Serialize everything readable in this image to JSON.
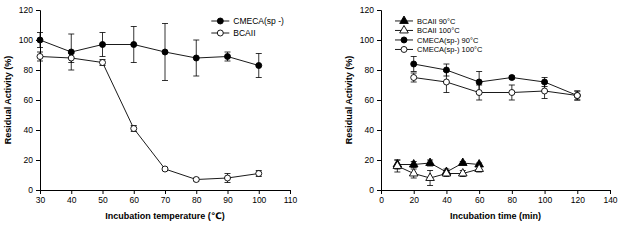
{
  "chart_data": [
    {
      "type": "line",
      "x_label": "Incubation temperature (℃)",
      "y_label": "Residual Activity (%)",
      "xlim": [
        30,
        110
      ],
      "xticks": [
        30,
        40,
        50,
        60,
        70,
        80,
        90,
        100,
        110
      ],
      "ylim": [
        0,
        120
      ],
      "yticks": [
        0,
        20,
        40,
        60,
        80,
        100,
        120
      ],
      "legend": "upper right",
      "series": [
        {
          "name": "CMECA(sp -)",
          "color": "#000000",
          "marker": "circle",
          "line_style": "solid",
          "x": [
            30,
            40,
            50,
            60,
            70,
            80,
            90,
            100
          ],
          "values": [
            100,
            92,
            97,
            97,
            92,
            88,
            89,
            83
          ],
          "errors": [
            5,
            12,
            8,
            12,
            19,
            12,
            3,
            8
          ]
        },
        {
          "name": "BCAII",
          "color": "#000000",
          "marker": "circle-open",
          "line_style": "solid",
          "x": [
            30,
            40,
            50,
            60,
            70,
            80,
            90,
            100
          ],
          "values": [
            89,
            88,
            85,
            41,
            14,
            7,
            8,
            11
          ],
          "errors": [
            3,
            3,
            2,
            2,
            1,
            1,
            3,
            2
          ]
        }
      ]
    },
    {
      "type": "line",
      "x_label": "Incubation time (min)",
      "y_label": "Residual Activity (%)",
      "xlim": [
        0,
        140
      ],
      "xticks": [
        0,
        20,
        40,
        60,
        80,
        100,
        120,
        140
      ],
      "ylim": [
        0,
        120
      ],
      "yticks": [
        0,
        20,
        40,
        60,
        80,
        100,
        120
      ],
      "legend": "upper left",
      "series": [
        {
          "name": "BCAII 90°C",
          "color": "#000000",
          "marker": "triangle",
          "line_style": "solid",
          "x": [
            10,
            20,
            30,
            40,
            50,
            60
          ],
          "values": [
            17,
            17,
            18,
            12,
            18,
            17
          ],
          "errors": [
            3,
            2,
            2,
            2,
            1,
            1
          ]
        },
        {
          "name": "BCAII 100°C",
          "color": "#000000",
          "marker": "triangle-open",
          "line_style": "solid",
          "x": [
            10,
            20,
            30,
            40,
            50,
            60
          ],
          "values": [
            16,
            11,
            8,
            11,
            11,
            14
          ],
          "errors": [
            4,
            3,
            5,
            2,
            2,
            2
          ]
        },
        {
          "name": "CMECA(sp-) 90°C",
          "color": "#000000",
          "marker": "circle",
          "line_style": "solid",
          "x": [
            20,
            40,
            60,
            80,
            100,
            120
          ],
          "values": [
            84,
            80,
            72,
            75,
            72,
            63
          ],
          "errors": [
            5,
            4,
            7,
            1,
            3,
            3
          ]
        },
        {
          "name": "CMECA(sp-) 100°C",
          "color": "#000000",
          "marker": "circle-open",
          "line_style": "solid",
          "x": [
            20,
            40,
            60,
            80,
            100,
            120
          ],
          "values": [
            75,
            72,
            65,
            65,
            66,
            63
          ],
          "errors": [
            3,
            7,
            5,
            5,
            5,
            3
          ]
        }
      ]
    }
  ]
}
